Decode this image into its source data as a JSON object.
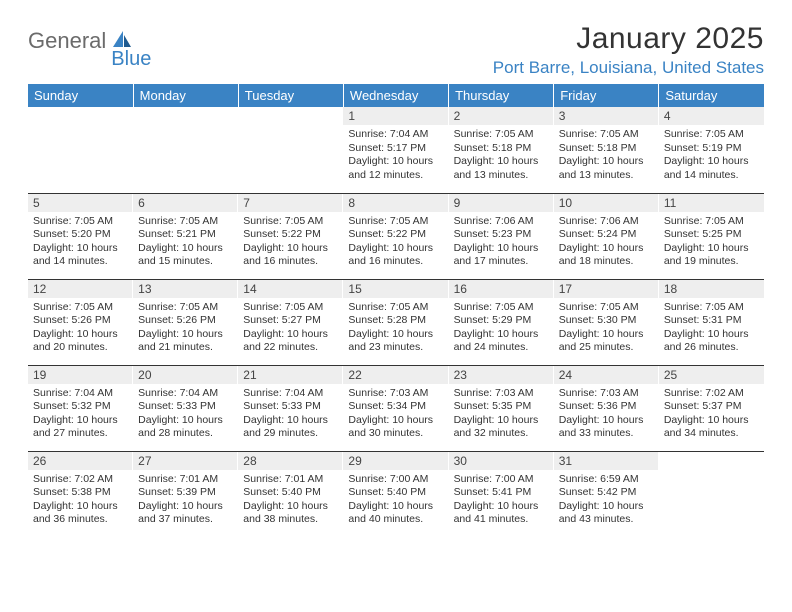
{
  "logo": {
    "part1": "General",
    "part2": "Blue"
  },
  "title": "January 2025",
  "location": "Port Barre, Louisiana, United States",
  "colors": {
    "accent": "#3a83c4",
    "header_bg": "#3a83c4",
    "header_text": "#ffffff",
    "daynum_bg": "#eeeeee",
    "border": "#333333",
    "logo_gray": "#6b6b6b"
  },
  "weekdays": [
    "Sunday",
    "Monday",
    "Tuesday",
    "Wednesday",
    "Thursday",
    "Friday",
    "Saturday"
  ],
  "weeks": [
    [
      {
        "empty": true
      },
      {
        "empty": true
      },
      {
        "empty": true
      },
      {
        "n": "1",
        "sr": "7:04 AM",
        "ss": "5:17 PM",
        "dl": "10 hours and 12 minutes."
      },
      {
        "n": "2",
        "sr": "7:05 AM",
        "ss": "5:18 PM",
        "dl": "10 hours and 13 minutes."
      },
      {
        "n": "3",
        "sr": "7:05 AM",
        "ss": "5:18 PM",
        "dl": "10 hours and 13 minutes."
      },
      {
        "n": "4",
        "sr": "7:05 AM",
        "ss": "5:19 PM",
        "dl": "10 hours and 14 minutes."
      }
    ],
    [
      {
        "n": "5",
        "sr": "7:05 AM",
        "ss": "5:20 PM",
        "dl": "10 hours and 14 minutes."
      },
      {
        "n": "6",
        "sr": "7:05 AM",
        "ss": "5:21 PM",
        "dl": "10 hours and 15 minutes."
      },
      {
        "n": "7",
        "sr": "7:05 AM",
        "ss": "5:22 PM",
        "dl": "10 hours and 16 minutes."
      },
      {
        "n": "8",
        "sr": "7:05 AM",
        "ss": "5:22 PM",
        "dl": "10 hours and 16 minutes."
      },
      {
        "n": "9",
        "sr": "7:06 AM",
        "ss": "5:23 PM",
        "dl": "10 hours and 17 minutes."
      },
      {
        "n": "10",
        "sr": "7:06 AM",
        "ss": "5:24 PM",
        "dl": "10 hours and 18 minutes."
      },
      {
        "n": "11",
        "sr": "7:05 AM",
        "ss": "5:25 PM",
        "dl": "10 hours and 19 minutes."
      }
    ],
    [
      {
        "n": "12",
        "sr": "7:05 AM",
        "ss": "5:26 PM",
        "dl": "10 hours and 20 minutes."
      },
      {
        "n": "13",
        "sr": "7:05 AM",
        "ss": "5:26 PM",
        "dl": "10 hours and 21 minutes."
      },
      {
        "n": "14",
        "sr": "7:05 AM",
        "ss": "5:27 PM",
        "dl": "10 hours and 22 minutes."
      },
      {
        "n": "15",
        "sr": "7:05 AM",
        "ss": "5:28 PM",
        "dl": "10 hours and 23 minutes."
      },
      {
        "n": "16",
        "sr": "7:05 AM",
        "ss": "5:29 PM",
        "dl": "10 hours and 24 minutes."
      },
      {
        "n": "17",
        "sr": "7:05 AM",
        "ss": "5:30 PM",
        "dl": "10 hours and 25 minutes."
      },
      {
        "n": "18",
        "sr": "7:05 AM",
        "ss": "5:31 PM",
        "dl": "10 hours and 26 minutes."
      }
    ],
    [
      {
        "n": "19",
        "sr": "7:04 AM",
        "ss": "5:32 PM",
        "dl": "10 hours and 27 minutes."
      },
      {
        "n": "20",
        "sr": "7:04 AM",
        "ss": "5:33 PM",
        "dl": "10 hours and 28 minutes."
      },
      {
        "n": "21",
        "sr": "7:04 AM",
        "ss": "5:33 PM",
        "dl": "10 hours and 29 minutes."
      },
      {
        "n": "22",
        "sr": "7:03 AM",
        "ss": "5:34 PM",
        "dl": "10 hours and 30 minutes."
      },
      {
        "n": "23",
        "sr": "7:03 AM",
        "ss": "5:35 PM",
        "dl": "10 hours and 32 minutes."
      },
      {
        "n": "24",
        "sr": "7:03 AM",
        "ss": "5:36 PM",
        "dl": "10 hours and 33 minutes."
      },
      {
        "n": "25",
        "sr": "7:02 AM",
        "ss": "5:37 PM",
        "dl": "10 hours and 34 minutes."
      }
    ],
    [
      {
        "n": "26",
        "sr": "7:02 AM",
        "ss": "5:38 PM",
        "dl": "10 hours and 36 minutes."
      },
      {
        "n": "27",
        "sr": "7:01 AM",
        "ss": "5:39 PM",
        "dl": "10 hours and 37 minutes."
      },
      {
        "n": "28",
        "sr": "7:01 AM",
        "ss": "5:40 PM",
        "dl": "10 hours and 38 minutes."
      },
      {
        "n": "29",
        "sr": "7:00 AM",
        "ss": "5:40 PM",
        "dl": "10 hours and 40 minutes."
      },
      {
        "n": "30",
        "sr": "7:00 AM",
        "ss": "5:41 PM",
        "dl": "10 hours and 41 minutes."
      },
      {
        "n": "31",
        "sr": "6:59 AM",
        "ss": "5:42 PM",
        "dl": "10 hours and 43 minutes."
      },
      {
        "empty": true
      }
    ]
  ],
  "labels": {
    "sunrise": "Sunrise:",
    "sunset": "Sunset:",
    "daylight": "Daylight:"
  }
}
